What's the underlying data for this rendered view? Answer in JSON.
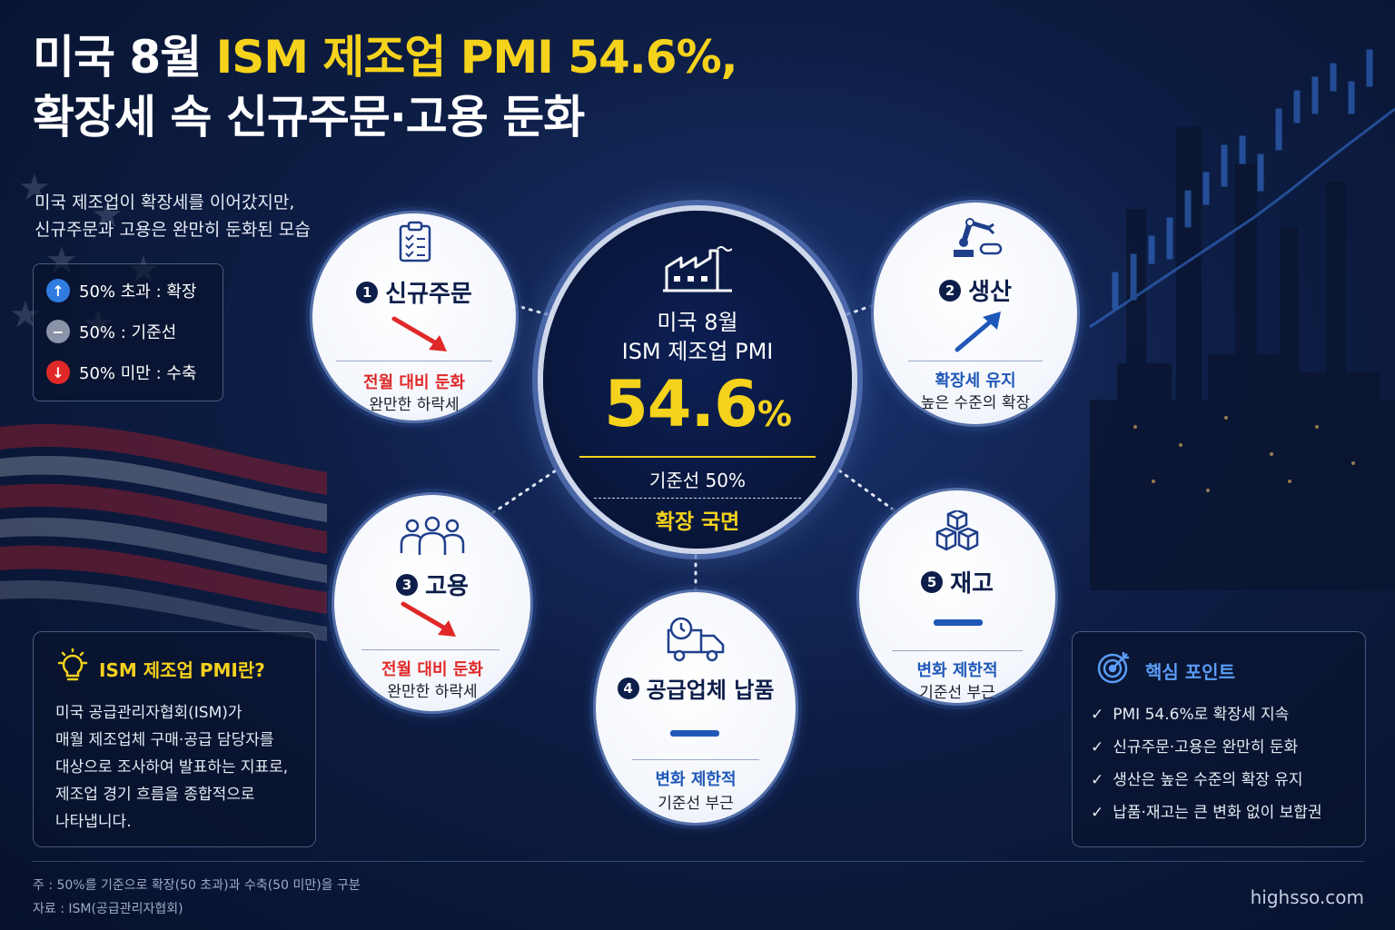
{
  "title": {
    "line1_white": "미국 8월 ",
    "line1_yellow": "ISM 제조업 PMI 54.6%,",
    "line2": "확장세 속 신규주문·고용 둔화"
  },
  "subtitle": {
    "line1": "미국 제조업이 확장세를 이어갔지만,",
    "line2": "신규주문과 고용은 완만히 둔화된 모습"
  },
  "legend": [
    {
      "icon": "arrow-up-icon",
      "symbol": "↑",
      "color": "#2f7be0",
      "label": "50% 초과 : 확장"
    },
    {
      "icon": "minus-icon",
      "symbol": "−",
      "color": "#8a93a8",
      "label": "50% : 기준선"
    },
    {
      "icon": "arrow-down-icon",
      "symbol": "↓",
      "color": "#e02828",
      "label": "50% 미만 : 수축"
    }
  ],
  "center": {
    "label1": "미국 8월",
    "label2": "ISM 제조업 PMI",
    "value": "54.6",
    "unit": "%",
    "baseline": "기준선 50%",
    "phase": "확장 국면"
  },
  "cards": [
    {
      "num": "1",
      "title": "신규주문",
      "icon": "clipboard-icon",
      "trend": "down",
      "status": "전월 대비 둔화",
      "desc": "완만한 하락세"
    },
    {
      "num": "2",
      "title": "생산",
      "icon": "robot-arm-icon",
      "trend": "up",
      "status": "확장세 유지",
      "desc": "높은 수준의 확장"
    },
    {
      "num": "3",
      "title": "고용",
      "icon": "people-icon",
      "trend": "down",
      "status": "전월 대비 둔화",
      "desc": "완만한 하락세"
    },
    {
      "num": "4",
      "title": "공급업체 납품",
      "icon": "delivery-truck-icon",
      "trend": "flat",
      "status": "변화 제한적",
      "desc": "기준선 부근"
    },
    {
      "num": "5",
      "title": "재고",
      "icon": "boxes-icon",
      "trend": "flat",
      "status": "변화 제한적",
      "desc": "기준선 부근"
    }
  ],
  "info": {
    "title": "ISM 제조업 PMI란?",
    "icon": "lightbulb-icon",
    "lines": [
      "미국 공급관리자협회(ISM)가",
      "매월 제조업체 구매·공급 담당자를",
      "대상으로 조사하여 발표하는 지표로,",
      "제조업 경기 흐름을 종합적으로",
      "나타냅니다."
    ]
  },
  "keypoints": {
    "title": "핵심 포인트",
    "icon": "target-icon",
    "items": [
      "PMI 54.6%로 확장세 지속",
      "신규주문·고용은 완만히 둔화",
      "생산은 높은 수준의 확장 유지",
      "납품·재고는 큰 변화 없이 보합권"
    ]
  },
  "footer": {
    "note": "주 : 50%를 기준으로 확장(50 초과)과 수축(50 미만)을 구분",
    "source": "자료 : ISM(공급관리자협회)",
    "site": "highsso.com"
  },
  "colors": {
    "accent_yellow": "#f5d21c",
    "down_red": "#e02828",
    "up_blue": "#1f58b8",
    "navy": "#0d1e4a"
  }
}
